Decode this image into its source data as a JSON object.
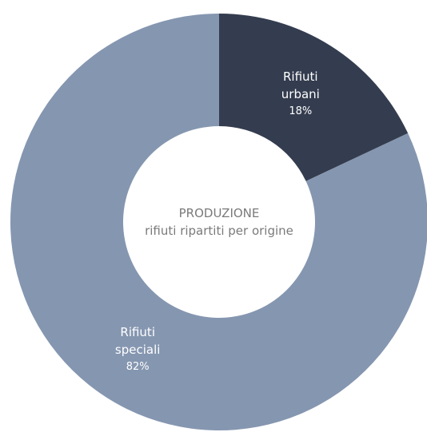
{
  "chart_data": {
    "type": "pie",
    "title": "PRODUZIONE",
    "subtitle": "rifiuti ripartiti per origine",
    "categories": [
      "Rifiuti urbani",
      "Rifiuti speciali"
    ],
    "values": [
      18,
      82
    ],
    "value_labels": [
      "18%",
      "82%"
    ],
    "colors": [
      "#343d4f",
      "#8596b0"
    ]
  }
}
